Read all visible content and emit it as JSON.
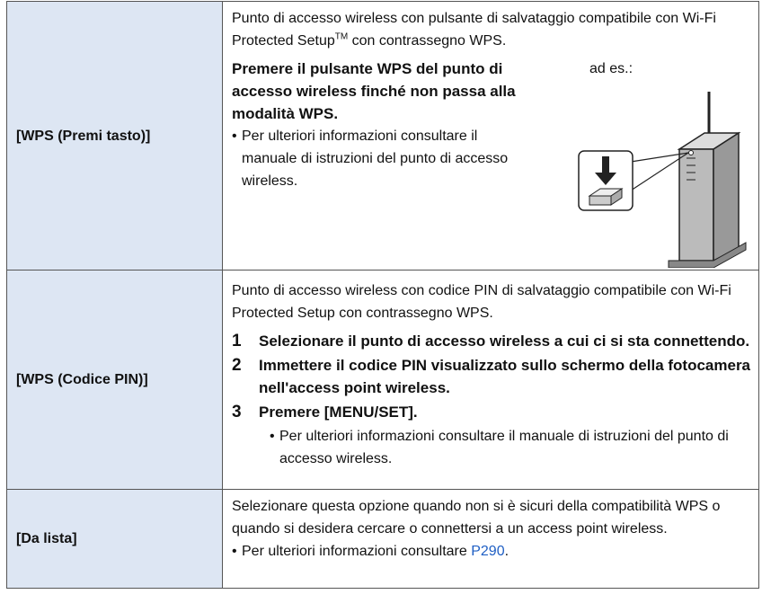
{
  "table": {
    "rows": [
      {
        "label": "[WPS (Premi tasto)]",
        "intro": "Punto di accesso wireless con pulsante di salvataggio compatibile con Wi-Fi Protected Setup",
        "trademark": "TM",
        "intro_end": " con contrassegno WPS.",
        "instruction": "Premere il pulsante WPS del punto di accesso wireless finché non passa alla modalità WPS.",
        "bullet": "Per ulteriori informazioni consultare il manuale di istruzioni del punto di accesso wireless.",
        "example": "ad es.:"
      },
      {
        "label": "[WPS (Codice PIN)]",
        "intro": "Punto di accesso wireless con codice PIN di salvataggio compatibile con Wi-Fi Protected Setup con contrassegno WPS.",
        "steps": [
          {
            "number": "1",
            "text": "Selezionare il punto di accesso wireless a cui ci si sta connettendo."
          },
          {
            "number": "2",
            "text": "Immettere il codice PIN visualizzato sullo schermo della fotocamera nell'access point wireless."
          },
          {
            "number": "3",
            "text": "Premere [MENU/SET]."
          }
        ],
        "bullet": "Per ulteriori informazioni consultare il manuale di istruzioni del punto di accesso wireless."
      },
      {
        "label": "[Da lista]",
        "intro": "Selezionare questa opzione quando non si è sicuri della compatibilità WPS o quando si desidera cercare o connettersi a un access point wireless.",
        "bullet": "Per ulteriori informazioni consultare ",
        "link": "P290",
        "bullet_end": "."
      }
    ]
  }
}
